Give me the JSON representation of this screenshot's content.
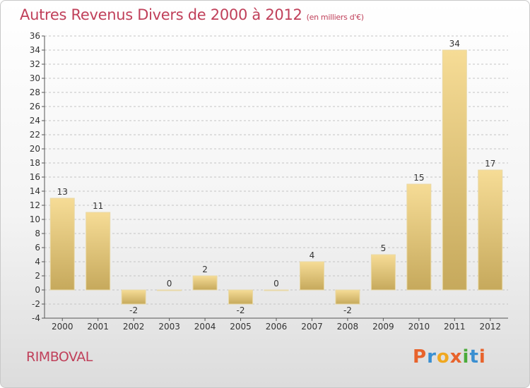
{
  "header": {
    "title": "Autres Revenus Divers de 2000 à 2012",
    "unit": "(en milliers d'€)"
  },
  "footer": {
    "place": "RIMBOVAL",
    "logo": "Proxiti"
  },
  "colors": {
    "title": "#c0405a",
    "bar_light": "#f6dc96",
    "bar_dark": "#c6a95c",
    "logo_letters": [
      "#e8632c",
      "#3a8fd1",
      "#f0a820",
      "#e8632c",
      "#4aab3a",
      "#3a8fd1",
      "#e8632c"
    ]
  },
  "chart_data": {
    "type": "bar",
    "categories": [
      "2000",
      "2001",
      "2002",
      "2003",
      "2004",
      "2005",
      "2006",
      "2007",
      "2008",
      "2009",
      "2010",
      "2011",
      "2012"
    ],
    "values": [
      13,
      11,
      -2,
      0,
      2,
      -2,
      0,
      4,
      -2,
      5,
      15,
      34,
      17
    ],
    "ylim": [
      -4,
      36
    ],
    "yticks": [
      -4,
      -2,
      0,
      2,
      4,
      6,
      8,
      10,
      12,
      14,
      16,
      18,
      20,
      22,
      24,
      26,
      28,
      30,
      32,
      34,
      36
    ],
    "grid": "horizontal-dashed",
    "xlabel": "",
    "ylabel": ""
  }
}
